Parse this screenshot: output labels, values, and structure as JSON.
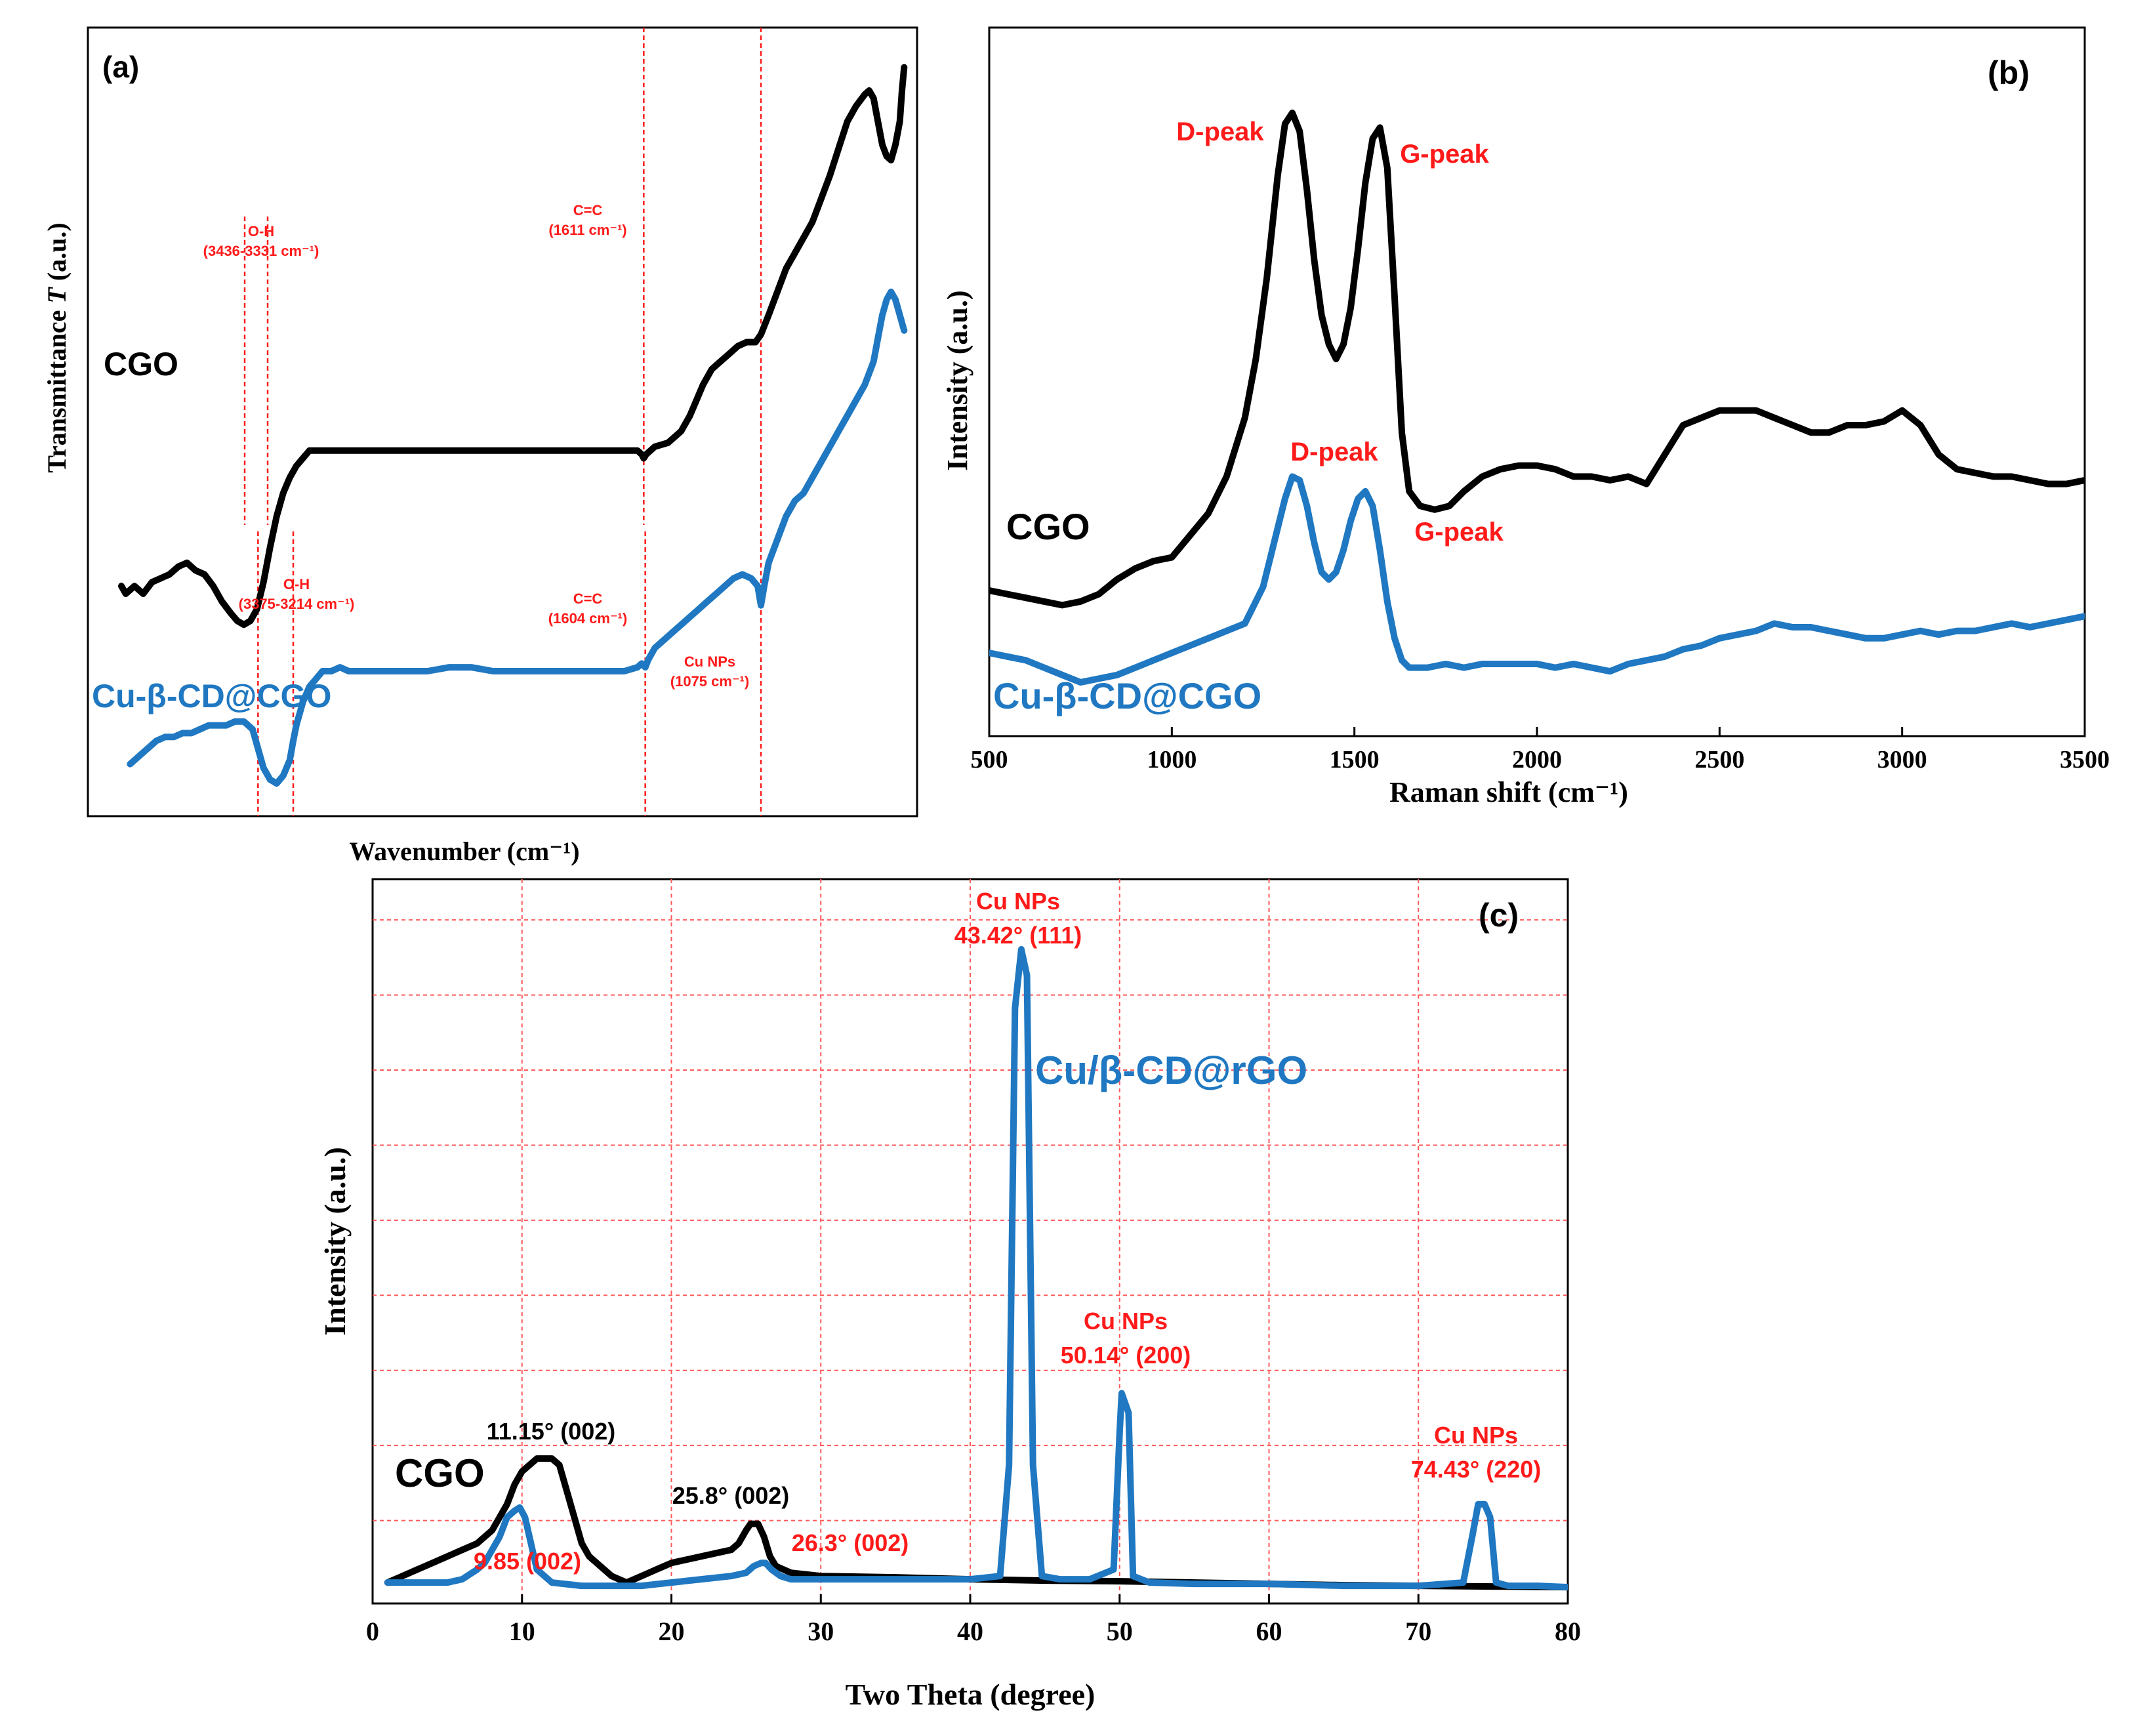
{
  "colors": {
    "cgo": "#000000",
    "cu": "#1f78c1",
    "annotation": "#ff1a1a",
    "grid": "#ff5a5a"
  },
  "chart_data": [
    {
      "id": "a",
      "type": "line",
      "panel_label": "(a)",
      "title": "",
      "xlabel": "Wavenumber (cm⁻¹)",
      "ylabel_prefix": "Transmittance ",
      "ylabel_italic": "T",
      "ylabel_suffix": " (a.u.)",
      "xlim": [
        4000,
        400
      ],
      "x_ticks_shown": false,
      "grid": false,
      "series": [
        {
          "name": "CGO",
          "color": "#000000",
          "x": [
            4000,
            3980,
            3940,
            3900,
            3860,
            3820,
            3780,
            3740,
            3700,
            3660,
            3620,
            3580,
            3540,
            3500,
            3470,
            3440,
            3410,
            3380,
            3350,
            3320,
            3290,
            3260,
            3230,
            3200,
            3170,
            3140,
            3110,
            3080,
            3040,
            3000,
            2960,
            2920,
            2880,
            2840,
            2800,
            2700,
            2600,
            2500,
            2400,
            2300,
            2200,
            2100,
            2000,
            1900,
            1800,
            1700,
            1640,
            1620,
            1611,
            1600,
            1560,
            1500,
            1440,
            1400,
            1370,
            1340,
            1300,
            1260,
            1220,
            1180,
            1140,
            1100,
            1075,
            1040,
            1000,
            960,
            920,
            880,
            840,
            800,
            760,
            720,
            680,
            640,
            600,
            580,
            560,
            540,
            520,
            500,
            480,
            460,
            440,
            430,
            420
          ],
          "y": [
            0.52,
            0.5,
            0.52,
            0.5,
            0.53,
            0.54,
            0.55,
            0.57,
            0.58,
            0.56,
            0.55,
            0.52,
            0.48,
            0.45,
            0.43,
            0.42,
            0.43,
            0.46,
            0.53,
            0.62,
            0.7,
            0.76,
            0.8,
            0.83,
            0.85,
            0.87,
            0.87,
            0.87,
            0.87,
            0.87,
            0.87,
            0.87,
            0.87,
            0.87,
            0.87,
            0.87,
            0.87,
            0.87,
            0.87,
            0.87,
            0.87,
            0.87,
            0.87,
            0.87,
            0.87,
            0.87,
            0.87,
            0.86,
            0.85,
            0.86,
            0.88,
            0.89,
            0.92,
            0.96,
            1.0,
            1.04,
            1.08,
            1.1,
            1.12,
            1.14,
            1.15,
            1.15,
            1.17,
            1.22,
            1.28,
            1.34,
            1.38,
            1.42,
            1.46,
            1.52,
            1.58,
            1.65,
            1.72,
            1.76,
            1.79,
            1.8,
            1.78,
            1.72,
            1.66,
            1.63,
            1.62,
            1.66,
            1.72,
            1.8,
            1.86
          ]
        },
        {
          "name": "Cu-β-CD@CGO",
          "color": "#1f78c1",
          "x": [
            3960,
            3920,
            3880,
            3840,
            3800,
            3760,
            3720,
            3680,
            3640,
            3600,
            3560,
            3520,
            3480,
            3440,
            3400,
            3375,
            3350,
            3320,
            3290,
            3260,
            3230,
            3214,
            3200,
            3170,
            3140,
            3110,
            3080,
            3040,
            3000,
            2960,
            2920,
            2880,
            2840,
            2800,
            2700,
            2600,
            2500,
            2400,
            2300,
            2200,
            2100,
            2000,
            1900,
            1800,
            1700,
            1640,
            1620,
            1604,
            1590,
            1560,
            1500,
            1440,
            1400,
            1360,
            1320,
            1280,
            1240,
            1200,
            1160,
            1120,
            1090,
            1075,
            1060,
            1040,
            1000,
            960,
            920,
            880,
            840,
            800,
            760,
            720,
            680,
            640,
            600,
            560,
            540,
            520,
            500,
            480,
            460,
            440,
            420
          ],
          "y": [
            0.06,
            0.08,
            0.1,
            0.12,
            0.13,
            0.13,
            0.14,
            0.14,
            0.15,
            0.16,
            0.16,
            0.16,
            0.17,
            0.17,
            0.15,
            0.1,
            0.05,
            0.02,
            0.01,
            0.03,
            0.07,
            0.12,
            0.16,
            0.22,
            0.26,
            0.28,
            0.3,
            0.3,
            0.31,
            0.3,
            0.3,
            0.3,
            0.3,
            0.3,
            0.3,
            0.3,
            0.31,
            0.31,
            0.3,
            0.3,
            0.3,
            0.3,
            0.3,
            0.3,
            0.3,
            0.31,
            0.32,
            0.31,
            0.33,
            0.36,
            0.39,
            0.42,
            0.44,
            0.46,
            0.48,
            0.5,
            0.52,
            0.54,
            0.55,
            0.54,
            0.52,
            0.47,
            0.52,
            0.58,
            0.64,
            0.7,
            0.74,
            0.76,
            0.8,
            0.84,
            0.88,
            0.92,
            0.96,
            1.0,
            1.04,
            1.1,
            1.16,
            1.22,
            1.26,
            1.28,
            1.26,
            1.22,
            1.18
          ]
        }
      ],
      "reference_lines": [
        {
          "x": 3436,
          "series": "CGO"
        },
        {
          "x": 3331,
          "series": "CGO"
        },
        {
          "x": 1611,
          "series": "CGO"
        },
        {
          "x": 3375,
          "series": "Cu"
        },
        {
          "x": 3214,
          "series": "Cu"
        },
        {
          "x": 1604,
          "series": "Cu"
        },
        {
          "x": 1075,
          "series": "Cu"
        }
      ],
      "annotations": [
        {
          "line1": "O-H",
          "line2": "(3436-3331 cm⁻¹)"
        },
        {
          "line1": "C=C",
          "line2": "(1611 cm⁻¹)"
        },
        {
          "line1": "O-H",
          "line2": "(3375-3214 cm⁻¹)"
        },
        {
          "line1": "C=C",
          "line2": "(1604 cm⁻¹)"
        },
        {
          "line1": "Cu NPs",
          "line2": "(1075 cm⁻¹)"
        }
      ],
      "series_labels": [
        "CGO",
        "Cu-β-CD@CGO"
      ]
    },
    {
      "id": "b",
      "type": "line",
      "panel_label": "(b)",
      "title": "",
      "xlabel": "Raman shift (cm⁻¹)",
      "ylabel": "Intensity (a.u.)",
      "xlim": [
        500,
        3500
      ],
      "x_ticks": [
        500,
        1000,
        1500,
        2000,
        2500,
        3000,
        3500
      ],
      "grid": false,
      "series": [
        {
          "name": "CGO",
          "color": "#000000",
          "x": [
            500,
            550,
            600,
            650,
            700,
            750,
            800,
            850,
            900,
            950,
            1000,
            1050,
            1100,
            1150,
            1200,
            1230,
            1260,
            1290,
            1310,
            1330,
            1350,
            1370,
            1390,
            1410,
            1430,
            1450,
            1470,
            1490,
            1510,
            1530,
            1550,
            1570,
            1590,
            1610,
            1630,
            1650,
            1680,
            1720,
            1760,
            1800,
            1850,
            1900,
            1950,
            2000,
            2050,
            2100,
            2150,
            2200,
            2250,
            2300,
            2350,
            2400,
            2450,
            2500,
            2550,
            2600,
            2650,
            2700,
            2750,
            2800,
            2850,
            2900,
            2950,
            3000,
            3050,
            3100,
            3150,
            3200,
            3250,
            3300,
            3350,
            3400,
            3450,
            3500
          ],
          "y": [
            0.25,
            0.24,
            0.23,
            0.22,
            0.21,
            0.22,
            0.24,
            0.28,
            0.31,
            0.33,
            0.34,
            0.4,
            0.46,
            0.56,
            0.72,
            0.88,
            1.1,
            1.38,
            1.52,
            1.55,
            1.5,
            1.34,
            1.15,
            1.0,
            0.92,
            0.88,
            0.92,
            1.02,
            1.18,
            1.36,
            1.48,
            1.51,
            1.4,
            1.05,
            0.68,
            0.52,
            0.48,
            0.47,
            0.48,
            0.52,
            0.56,
            0.58,
            0.59,
            0.59,
            0.58,
            0.56,
            0.56,
            0.55,
            0.56,
            0.54,
            0.62,
            0.7,
            0.72,
            0.74,
            0.74,
            0.74,
            0.72,
            0.7,
            0.68,
            0.68,
            0.7,
            0.7,
            0.71,
            0.74,
            0.7,
            0.62,
            0.58,
            0.57,
            0.56,
            0.56,
            0.55,
            0.54,
            0.54,
            0.55
          ]
        },
        {
          "name": "Cu-β-CD@CGO",
          "color": "#1f78c1",
          "x": [
            500,
            550,
            600,
            650,
            700,
            750,
            800,
            850,
            900,
            950,
            1000,
            1050,
            1100,
            1150,
            1200,
            1250,
            1280,
            1310,
            1330,
            1350,
            1370,
            1390,
            1410,
            1430,
            1450,
            1470,
            1490,
            1510,
            1530,
            1550,
            1570,
            1590,
            1610,
            1630,
            1650,
            1700,
            1750,
            1800,
            1850,
            1900,
            1950,
            2000,
            2050,
            2100,
            2150,
            2200,
            2250,
            2300,
            2350,
            2400,
            2450,
            2500,
            2550,
            2600,
            2650,
            2700,
            2750,
            2800,
            2850,
            2900,
            2950,
            3000,
            3050,
            3100,
            3150,
            3200,
            3250,
            3300,
            3350,
            3400,
            3450,
            3500
          ],
          "y": [
            0.08,
            0.07,
            0.06,
            0.04,
            0.02,
            0.0,
            0.01,
            0.02,
            0.04,
            0.06,
            0.08,
            0.1,
            0.12,
            0.14,
            0.16,
            0.26,
            0.38,
            0.5,
            0.56,
            0.55,
            0.48,
            0.38,
            0.3,
            0.28,
            0.3,
            0.36,
            0.44,
            0.5,
            0.52,
            0.48,
            0.36,
            0.22,
            0.12,
            0.06,
            0.04,
            0.04,
            0.05,
            0.04,
            0.05,
            0.05,
            0.05,
            0.05,
            0.04,
            0.05,
            0.04,
            0.03,
            0.05,
            0.06,
            0.07,
            0.09,
            0.1,
            0.12,
            0.13,
            0.14,
            0.16,
            0.15,
            0.15,
            0.14,
            0.13,
            0.12,
            0.12,
            0.13,
            0.14,
            0.13,
            0.14,
            0.14,
            0.15,
            0.16,
            0.15,
            0.16,
            0.17,
            0.18
          ]
        }
      ],
      "annotations": [
        {
          "text": "D-peak",
          "series": "CGO"
        },
        {
          "text": "G-peak",
          "series": "CGO"
        },
        {
          "text": "D-peak",
          "series": "Cu"
        },
        {
          "text": "G-peak",
          "series": "Cu"
        }
      ],
      "series_labels": [
        "CGO",
        "Cu-β-CD@CGO"
      ]
    },
    {
      "id": "c",
      "type": "line",
      "panel_label": "(c)",
      "title": "",
      "xlabel": "Two Theta (degree)",
      "ylabel": "Intensity (a.u.)",
      "xlim": [
        0,
        80
      ],
      "ylim": [
        0,
        100
      ],
      "x_ticks": [
        0,
        10,
        20,
        30,
        40,
        50,
        60,
        70,
        80
      ],
      "grid": true,
      "series": [
        {
          "name": "CGO",
          "color": "#000000",
          "x": [
            1,
            2,
            3,
            4,
            5,
            6,
            7,
            8,
            9,
            9.5,
            10,
            10.5,
            11,
            11.5,
            12,
            12.5,
            13,
            13.5,
            14,
            14.5,
            15,
            16,
            17,
            18,
            19,
            20,
            21,
            22,
            23,
            24,
            24.5,
            25,
            25.3,
            25.8,
            26.2,
            26.6,
            27,
            28,
            30,
            35,
            40,
            45,
            50,
            55,
            60,
            65,
            70,
            75,
            80
          ],
          "y": [
            2,
            3,
            4,
            5,
            6,
            7,
            8,
            10,
            14,
            17,
            19,
            20,
            21,
            21,
            21,
            20,
            16,
            12,
            8,
            6,
            5,
            3,
            2,
            3,
            4,
            5,
            5.5,
            6,
            6.5,
            7,
            8,
            10,
            11,
            11,
            9,
            6,
            4.5,
            3.5,
            3,
            2.8,
            2.5,
            2.3,
            2.2,
            2,
            1.8,
            1.6,
            1.5,
            1.4,
            1.3
          ]
        },
        {
          "name": "Cu/β-CD@rGO",
          "color": "#1f78c1",
          "x": [
            1,
            3,
            5,
            6,
            7,
            7.5,
            8,
            8.5,
            9,
            9.5,
            9.85,
            10.2,
            10.6,
            11,
            12,
            14,
            16,
            18,
            20,
            22,
            24,
            25,
            25.5,
            26,
            26.3,
            26.7,
            27.3,
            28,
            30,
            35,
            40,
            42,
            42.6,
            43,
            43.42,
            43.8,
            44.2,
            44.8,
            46,
            48,
            49.6,
            50,
            50.14,
            50.6,
            50.9,
            52,
            55,
            60,
            65,
            70,
            73,
            73.6,
            74,
            74.43,
            74.8,
            75.2,
            76,
            78,
            80
          ],
          "y": [
            2,
            2,
            2,
            2.5,
            4,
            5,
            7,
            9,
            12,
            13,
            13.5,
            12,
            8,
            4,
            2,
            1.5,
            1.5,
            1.5,
            2,
            2.5,
            3,
            3.5,
            4.5,
            5,
            5,
            4,
            3,
            2.5,
            2.5,
            2.5,
            2.5,
            3,
            20,
            90,
            99,
            95,
            20,
            3,
            2.5,
            2.5,
            4,
            25,
            31,
            28,
            3,
            2,
            1.8,
            1.8,
            1.5,
            1.5,
            2,
            9,
            14,
            14,
            12,
            2,
            1.5,
            1.5,
            1.3
          ]
        }
      ],
      "annotations": [
        {
          "text": "11.15° (002)",
          "color": "black"
        },
        {
          "text": "25.8° (002)",
          "color": "black"
        },
        {
          "text": "9.85 (002)",
          "color": "red"
        },
        {
          "text": "26.3° (002)",
          "color": "red"
        },
        {
          "line1": "Cu NPs",
          "line2": "43.42°  (111)",
          "color": "red"
        },
        {
          "line1": "Cu NPs",
          "line2": "50.14°  (200)",
          "color": "red"
        },
        {
          "line1": "Cu NPs",
          "line2": "74.43°  (220)",
          "color": "red"
        }
      ],
      "series_labels": [
        "CGO",
        "Cu/β-CD@rGO"
      ]
    }
  ]
}
